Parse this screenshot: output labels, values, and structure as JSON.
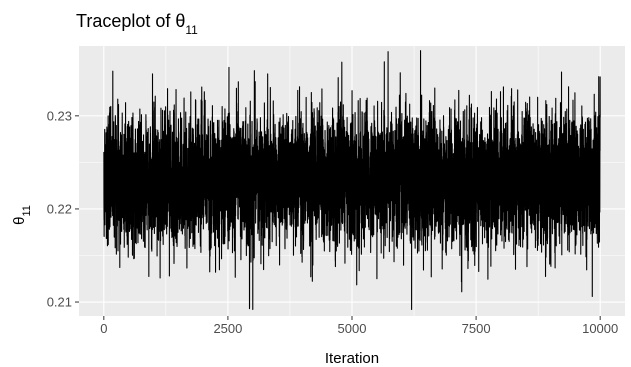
{
  "chart_data": {
    "type": "line",
    "title": "Traceplot of θ",
    "title_subscript": "11",
    "xlabel": "Iteration",
    "ylabel": "θ",
    "ylabel_subscript": "11",
    "xlim": [
      -500,
      10500
    ],
    "ylim": [
      0.2085,
      0.2375
    ],
    "x_ticks": [
      0,
      2500,
      5000,
      7500,
      10000
    ],
    "x_tick_labels": [
      "0",
      "2500",
      "5000",
      "7500",
      "10000"
    ],
    "y_ticks": [
      0.21,
      0.22,
      0.23
    ],
    "y_tick_labels": [
      "0.21",
      "0.22",
      "0.23"
    ],
    "grid": true,
    "background": "#ebebeb",
    "grid_major_color": "#ffffff",
    "line_color": "#000000",
    "series": [
      {
        "x_start": 1,
        "x_end": 10000,
        "n_points": 10000,
        "mean": 0.2232,
        "sd": 0.0033,
        "min": 0.2092,
        "max": 0.237
      }
    ]
  }
}
